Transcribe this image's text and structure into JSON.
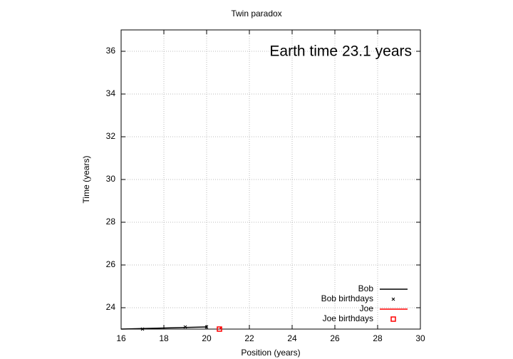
{
  "chart_data": {
    "type": "line",
    "title": "Twin paradox",
    "annotation": "Earth time 23.1 years",
    "xlabel": "Position (years)",
    "ylabel": "Time (years)",
    "xlim": [
      16,
      30
    ],
    "ylim": [
      23,
      37
    ],
    "xticks": [
      16,
      18,
      20,
      22,
      24,
      26,
      28,
      30
    ],
    "yticks": [
      24,
      26,
      28,
      30,
      32,
      34,
      36
    ],
    "grid": true,
    "legend": "bottom-right",
    "series": [
      {
        "name": "Bob",
        "color": "#000000",
        "style": "line",
        "x": [
          16,
          20
        ],
        "values": [
          23,
          23.1
        ]
      },
      {
        "name": "Bob birthdays",
        "color": "#000000",
        "style": "cross",
        "x": [
          17,
          19,
          20
        ],
        "values": [
          23,
          23.1,
          23.1
        ]
      },
      {
        "name": "Joe",
        "color": "#ff0000",
        "style": "line",
        "x": [
          20.6,
          20.7
        ],
        "values": [
          23,
          23.1
        ]
      },
      {
        "name": "Joe birthdays",
        "color": "#ff0000",
        "style": "square",
        "x": [
          20.6
        ],
        "values": [
          23
        ]
      }
    ]
  }
}
